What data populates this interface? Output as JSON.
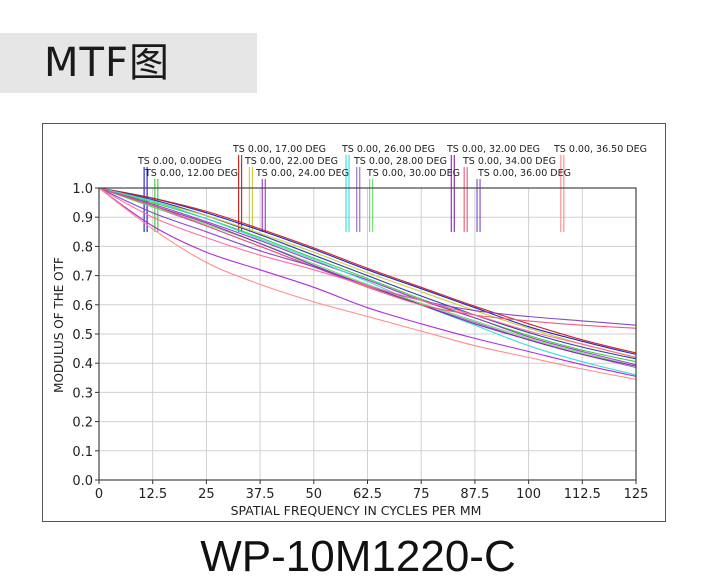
{
  "header": {
    "title": "MTF图"
  },
  "footer": {
    "model": "WP-10M1220-C"
  },
  "chart_data": {
    "type": "line",
    "title": "",
    "xlabel": "SPATIAL FREQUENCY IN CYCLES PER MM",
    "ylabel": "MODULUS OF THE OTF",
    "xlim": [
      0,
      125
    ],
    "ylim": [
      0,
      1
    ],
    "x_ticks": [
      "0",
      "12.5",
      "25",
      "37.5",
      "50",
      "62.5",
      "75",
      "87.5",
      "100",
      "112.5",
      "125"
    ],
    "y_ticks": [
      "0.0",
      "0.1",
      "0.2",
      "0.3",
      "0.4",
      "0.5",
      "0.6",
      "0.7",
      "0.8",
      "0.9",
      "1.0"
    ],
    "grid": true,
    "x": [
      0,
      12.5,
      25,
      37.5,
      50,
      62.5,
      75,
      87.5,
      100,
      112.5,
      125
    ],
    "legend": [
      {
        "label": "TS 0.00, 0.00DEG",
        "color": "#1a1acc",
        "marker_x": 10.5
      },
      {
        "label": "TS 0.00, 12.00 DEG",
        "color": "#33cc33",
        "marker_x": 13
      },
      {
        "label": "TS 0.00, 17.00 DEG",
        "color": "#cc1a1a",
        "marker_x": 32.5
      },
      {
        "label": "TS 0.00, 22.00 DEG",
        "color": "#cccc33",
        "marker_x": 35
      },
      {
        "label": "TS 0.00, 24.00 DEG",
        "color": "#9933cc",
        "marker_x": 38
      },
      {
        "label": "TS 0.00, 26.00 DEG",
        "color": "#33dddd",
        "marker_x": 57.5
      },
      {
        "label": "TS 0.00, 28.00 DEG",
        "color": "#9966cc",
        "marker_x": 60
      },
      {
        "label": "TS 0.00, 30.00 DEG",
        "color": "#66dd66",
        "marker_x": 63
      },
      {
        "label": "TS 0.00, 32.00 DEG",
        "color": "#8822aa",
        "marker_x": 82
      },
      {
        "label": "TS 0.00, 34.00 DEG",
        "color": "#ee5577",
        "marker_x": 85
      },
      {
        "label": "TS 0.00, 36.00 DEG",
        "color": "#7744cc",
        "marker_x": 88
      },
      {
        "label": "TS 0.00, 36.50 DEG",
        "color": "#ff8888",
        "marker_x": 107.5
      }
    ],
    "series": [
      {
        "name": "0.00 DEG T",
        "color": "#1a1acc",
        "values": [
          1.0,
          0.965,
          0.915,
          0.855,
          0.79,
          0.72,
          0.655,
          0.59,
          0.525,
          0.475,
          0.43
        ]
      },
      {
        "name": "0.00 DEG S",
        "color": "#2233aa",
        "values": [
          1.0,
          0.96,
          0.905,
          0.84,
          0.77,
          0.7,
          0.63,
          0.565,
          0.505,
          0.455,
          0.415
        ]
      },
      {
        "name": "12.00 DEG",
        "color": "#33cc33",
        "values": [
          1.0,
          0.95,
          0.895,
          0.83,
          0.76,
          0.69,
          0.62,
          0.555,
          0.495,
          0.445,
          0.405
        ]
      },
      {
        "name": "17.00 DEG",
        "color": "#cc1a1a",
        "values": [
          1.0,
          0.965,
          0.92,
          0.86,
          0.795,
          0.725,
          0.66,
          0.595,
          0.535,
          0.48,
          0.435
        ]
      },
      {
        "name": "22.00 DEG",
        "color": "#cccc33",
        "values": [
          1.0,
          0.955,
          0.905,
          0.845,
          0.78,
          0.71,
          0.645,
          0.58,
          0.52,
          0.465,
          0.42
        ]
      },
      {
        "name": "24.00 DEG",
        "color": "#9933cc",
        "values": [
          1.0,
          0.945,
          0.885,
          0.82,
          0.75,
          0.685,
          0.615,
          0.555,
          0.49,
          0.44,
          0.395
        ]
      },
      {
        "name": "26.00 DEG",
        "color": "#33dddd",
        "values": [
          1.0,
          0.955,
          0.895,
          0.825,
          0.755,
          0.68,
          0.6,
          0.53,
          0.46,
          0.405,
          0.36
        ]
      },
      {
        "name": "28.00 DEG",
        "color": "#9966cc",
        "values": [
          1.0,
          0.935,
          0.87,
          0.8,
          0.73,
          0.665,
          0.6,
          0.54,
          0.48,
          0.43,
          0.385
        ]
      },
      {
        "name": "30.00 DEG",
        "color": "#66dd66",
        "values": [
          1.0,
          0.935,
          0.875,
          0.81,
          0.74,
          0.67,
          0.605,
          0.545,
          0.485,
          0.435,
          0.39
        ]
      },
      {
        "name": "32.00 DEG",
        "color": "#8822aa",
        "values": [
          1.0,
          0.94,
          0.88,
          0.81,
          0.735,
          0.665,
          0.6,
          0.535,
          0.48,
          0.43,
          0.39
        ]
      },
      {
        "name": "34.00 DEG",
        "color": "#ee5577",
        "values": [
          1.0,
          0.94,
          0.87,
          0.8,
          0.73,
          0.66,
          0.6,
          0.565,
          0.545,
          0.53,
          0.52
        ]
      },
      {
        "name": "36.00 DEG T",
        "color": "#7744cc",
        "values": [
          1.0,
          0.915,
          0.85,
          0.785,
          0.73,
          0.665,
          0.615,
          0.58,
          0.56,
          0.545,
          0.53
        ]
      },
      {
        "name": "36.00 DEG S",
        "color": "#aa22dd",
        "values": [
          1.0,
          0.87,
          0.78,
          0.72,
          0.66,
          0.59,
          0.535,
          0.485,
          0.44,
          0.395,
          0.355
        ]
      },
      {
        "name": "36.50 DEG T",
        "color": "#ff6699",
        "values": [
          1.0,
          0.9,
          0.83,
          0.77,
          0.72,
          0.665,
          0.615,
          0.565,
          0.51,
          0.465,
          0.42
        ]
      },
      {
        "name": "36.50 DEG S",
        "color": "#ff8888",
        "values": [
          1.0,
          0.86,
          0.745,
          0.67,
          0.61,
          0.56,
          0.51,
          0.46,
          0.42,
          0.38,
          0.345
        ]
      }
    ]
  }
}
